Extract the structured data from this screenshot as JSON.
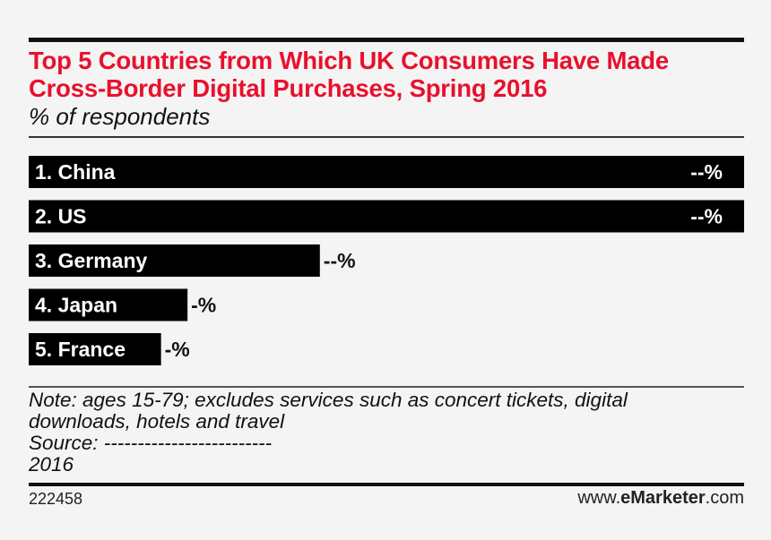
{
  "chart_data": {
    "type": "bar",
    "orientation": "horizontal",
    "title": "Top 5 Countries from Which UK Consumers Have Made Cross-Border Digital Purchases, Spring 2016",
    "subtitle": "% of respondents",
    "categories": [
      "1. China",
      "2. US",
      "3. Germany",
      "4. Japan",
      "5. France"
    ],
    "values": [
      100,
      100,
      40.7,
      22.2,
      18.5
    ],
    "value_labels": [
      "--%",
      "--%",
      "--%",
      "-%",
      "-%"
    ],
    "xlim": [
      0,
      100
    ]
  },
  "notes": {
    "line1": "Note: ages 15-79; excludes services such as concert tickets, digital",
    "line2": "downloads, hotels and travel",
    "line3": "Source: -------------------------",
    "line4": "2016"
  },
  "footer": {
    "chart_id": "222458",
    "site_prefix": "www.",
    "site_brand": "eMarketer",
    "site_suffix": ".com"
  },
  "colors": {
    "title": "#e8112d",
    "bar": "#000000",
    "bar_text": "#ffffff"
  }
}
